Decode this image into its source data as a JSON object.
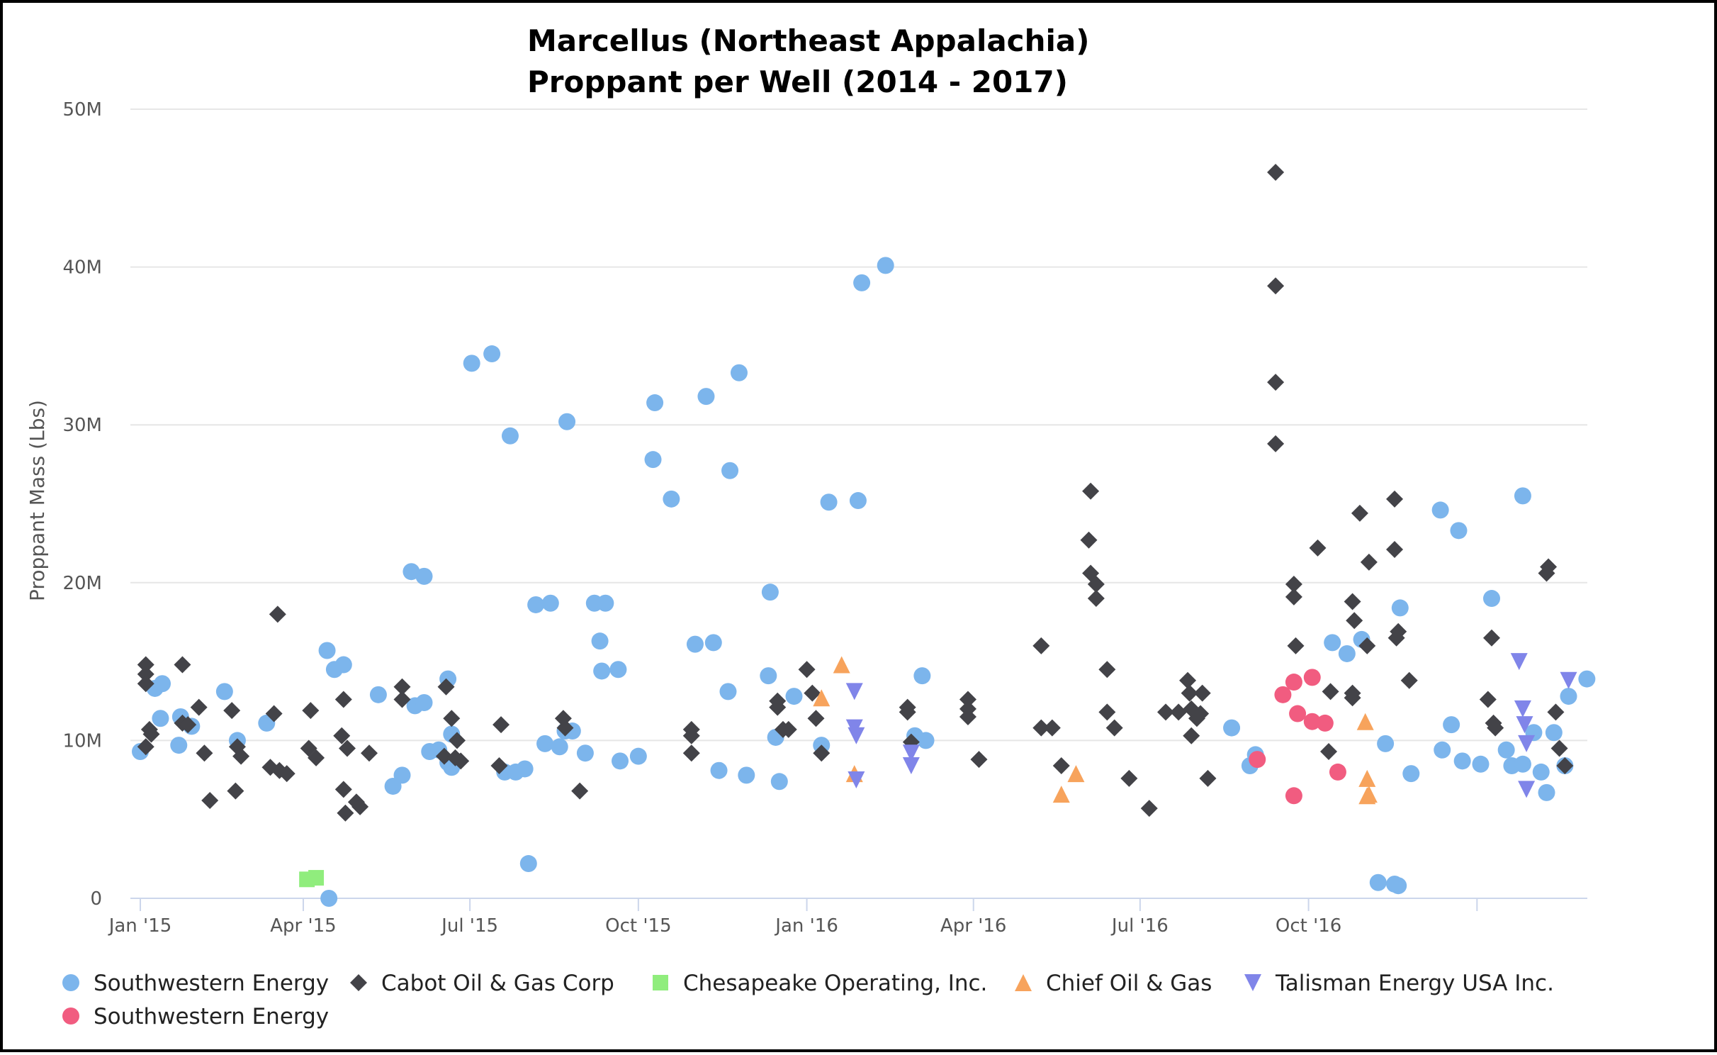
{
  "chart_data": {
    "type": "scatter",
    "title": [
      "Marcellus (Northeast Appalachia)",
      "Proppant per Well (2014 - 2017)"
    ],
    "ylabel": "Proppant Mass (Lbs)",
    "xlabel": "",
    "ylim": [
      0,
      50
    ],
    "y_ticks": [
      {
        "v": 0,
        "label": "0"
      },
      {
        "v": 10,
        "label": "10M"
      },
      {
        "v": 20,
        "label": "20M"
      },
      {
        "v": 30,
        "label": "30M"
      },
      {
        "v": 40,
        "label": "40M"
      },
      {
        "v": 50,
        "label": "50M"
      }
    ],
    "x_range_days": [
      -2,
      763
    ],
    "x_ticks": [
      {
        "label": "Jan '15",
        "d": 0
      },
      {
        "label": "Apr '15",
        "d": 89
      },
      {
        "label": "Jul '15",
        "d": 180
      },
      {
        "label": "Oct '15",
        "d": 272
      },
      {
        "label": "Jan '16",
        "d": 364
      },
      {
        "label": "Apr '16",
        "d": 455
      },
      {
        "label": "Jul '16",
        "d": 546
      },
      {
        "label": "Oct '16",
        "d": 638
      },
      {
        "label": "",
        "d": 730
      }
    ],
    "grid": true,
    "legend_position": "bottom-left",
    "series": [
      {
        "name": "Southwestern Energy",
        "color": "#7cb5ec",
        "marker": "circle",
        "points": [
          [
            0,
            9.3
          ],
          [
            8,
            13.3
          ],
          [
            12,
            13.6
          ],
          [
            22,
            11.5
          ],
          [
            46,
            13.1
          ],
          [
            11,
            11.4
          ],
          [
            21,
            9.7
          ],
          [
            28,
            10.9
          ],
          [
            53,
            10.0
          ],
          [
            69,
            11.1
          ],
          [
            102,
            15.7
          ],
          [
            106,
            14.5
          ],
          [
            111,
            14.8
          ],
          [
            130,
            12.9
          ],
          [
            138,
            7.1
          ],
          [
            143,
            7.8
          ],
          [
            148,
            20.7
          ],
          [
            155,
            20.4
          ],
          [
            150,
            12.2
          ],
          [
            155,
            12.4
          ],
          [
            158,
            9.3
          ],
          [
            163,
            9.4
          ],
          [
            168,
            8.6
          ],
          [
            168,
            13.9
          ],
          [
            170,
            10.4
          ],
          [
            170,
            8.3
          ],
          [
            181,
            33.9
          ],
          [
            192,
            34.5
          ],
          [
            199,
            8.0
          ],
          [
            202,
            29.3
          ],
          [
            205,
            8.0
          ],
          [
            210,
            8.2
          ],
          [
            212,
            2.2
          ],
          [
            216,
            18.6
          ],
          [
            221,
            9.8
          ],
          [
            224,
            18.7
          ],
          [
            229,
            9.6
          ],
          [
            233,
            30.2
          ],
          [
            232,
            10.6
          ],
          [
            236,
            10.6
          ],
          [
            243,
            9.2
          ],
          [
            248,
            18.7
          ],
          [
            254,
            18.7
          ],
          [
            251,
            16.3
          ],
          [
            252,
            14.4
          ],
          [
            261,
            14.5
          ],
          [
            262,
            8.7
          ],
          [
            272,
            9.0
          ],
          [
            280,
            27.8
          ],
          [
            281,
            31.4
          ],
          [
            290,
            25.3
          ],
          [
            303,
            16.1
          ],
          [
            313,
            16.2
          ],
          [
            309,
            31.8
          ],
          [
            316,
            8.1
          ],
          [
            321,
            13.1
          ],
          [
            322,
            27.1
          ],
          [
            331,
            7.8
          ],
          [
            327,
            33.3
          ],
          [
            343,
            14.1
          ],
          [
            344,
            19.4
          ],
          [
            347,
            10.2
          ],
          [
            349,
            7.4
          ],
          [
            357,
            12.8
          ],
          [
            372,
            9.7
          ],
          [
            376,
            25.1
          ],
          [
            392,
            25.2
          ],
          [
            394,
            39.0
          ],
          [
            407,
            40.1
          ],
          [
            423,
            10.3
          ],
          [
            427,
            14.1
          ],
          [
            429,
            10.0
          ],
          [
            103,
            0.0
          ],
          [
            596,
            10.8
          ],
          [
            606,
            8.4
          ],
          [
            609,
            9.1
          ],
          [
            651,
            16.2
          ],
          [
            659,
            15.5
          ],
          [
            667,
            16.4
          ],
          [
            680,
            9.8
          ],
          [
            676,
            1.0
          ],
          [
            685,
            0.9
          ],
          [
            687,
            0.8
          ],
          [
            688,
            18.4
          ],
          [
            694,
            7.9
          ],
          [
            710,
            24.6
          ],
          [
            716,
            11.0
          ],
          [
            711,
            9.4
          ],
          [
            720,
            23.3
          ],
          [
            732,
            8.5
          ],
          [
            722,
            8.7
          ],
          [
            738,
            19.0
          ],
          [
            746,
            9.4
          ],
          [
            755,
            25.5
          ],
          [
            749,
            8.4
          ],
          [
            755,
            8.5
          ],
          [
            761,
            10.5
          ],
          [
            765,
            8.0
          ],
          [
            768,
            6.7
          ],
          [
            772,
            10.5
          ],
          [
            778,
            8.4
          ],
          [
            780,
            12.8
          ],
          [
            790,
            13.9
          ]
        ]
      },
      {
        "name": "Cabot Oil & Gas Corp",
        "color": "#434348",
        "marker": "diamond",
        "points": [
          [
            3,
            14.8
          ],
          [
            3,
            14.2
          ],
          [
            3,
            13.6
          ],
          [
            3,
            9.6
          ],
          [
            5,
            10.7
          ],
          [
            6,
            10.4
          ],
          [
            23,
            14.8
          ],
          [
            23,
            11.1
          ],
          [
            26,
            11.0
          ],
          [
            32,
            12.1
          ],
          [
            35,
            9.2
          ],
          [
            38,
            6.2
          ],
          [
            50,
            11.9
          ],
          [
            53,
            9.6
          ],
          [
            55,
            9.0
          ],
          [
            52,
            6.8
          ],
          [
            75,
            18.0
          ],
          [
            73,
            11.7
          ],
          [
            71,
            8.3
          ],
          [
            76,
            8.1
          ],
          [
            80,
            7.9
          ],
          [
            92,
            9.5
          ],
          [
            93,
            11.9
          ],
          [
            96,
            8.9
          ],
          [
            111,
            12.6
          ],
          [
            110,
            10.3
          ],
          [
            113,
            9.5
          ],
          [
            111,
            6.9
          ],
          [
            112,
            5.4
          ],
          [
            118,
            6.1
          ],
          [
            120,
            5.8
          ],
          [
            125,
            9.2
          ],
          [
            143,
            13.4
          ],
          [
            143,
            12.6
          ],
          [
            167,
            13.4
          ],
          [
            166,
            9.0
          ],
          [
            170,
            11.4
          ],
          [
            172,
            8.9
          ],
          [
            175,
            8.7
          ],
          [
            173,
            10.0
          ],
          [
            197,
            11.0
          ],
          [
            196,
            8.4
          ],
          [
            231,
            11.4
          ],
          [
            232,
            10.8
          ],
          [
            240,
            6.8
          ],
          [
            301,
            10.7
          ],
          [
            301,
            10.3
          ],
          [
            301,
            9.2
          ],
          [
            348,
            12.5
          ],
          [
            348,
            12.1
          ],
          [
            351,
            10.7
          ],
          [
            354,
            10.7
          ],
          [
            364,
            14.5
          ],
          [
            367,
            13.0
          ],
          [
            369,
            11.4
          ],
          [
            372,
            9.2
          ],
          [
            419,
            12.1
          ],
          [
            419,
            11.8
          ],
          [
            421,
            9.9
          ],
          [
            452,
            12.6
          ],
          [
            452,
            12.0
          ],
          [
            452,
            11.5
          ],
          [
            458,
            8.8
          ],
          [
            492,
            16.0
          ],
          [
            492,
            10.8
          ],
          [
            498,
            10.8
          ],
          [
            503,
            8.4
          ],
          [
            519,
            25.8
          ],
          [
            518,
            22.7
          ],
          [
            519,
            20.6
          ],
          [
            522,
            19.9
          ],
          [
            522,
            19.0
          ],
          [
            528,
            14.5
          ],
          [
            528,
            11.8
          ],
          [
            532,
            10.8
          ],
          [
            540,
            7.6
          ],
          [
            551,
            5.7
          ],
          [
            560,
            11.8
          ],
          [
            567,
            11.8
          ],
          [
            572,
            13.8
          ],
          [
            573,
            13.0
          ],
          [
            574,
            12.0
          ],
          [
            574,
            10.3
          ],
          [
            577,
            11.4
          ],
          [
            579,
            11.7
          ],
          [
            580,
            13.0
          ],
          [
            583,
            7.6
          ],
          [
            620,
            46.0
          ],
          [
            620,
            38.8
          ],
          [
            620,
            32.7
          ],
          [
            620,
            28.8
          ],
          [
            631,
            16.0
          ],
          [
            630,
            19.9
          ],
          [
            630,
            19.1
          ],
          [
            643,
            22.2
          ],
          [
            650,
            13.1
          ],
          [
            649,
            9.3
          ],
          [
            662,
            18.8
          ],
          [
            663,
            17.6
          ],
          [
            662,
            13.0
          ],
          [
            662,
            12.7
          ],
          [
            666,
            24.4
          ],
          [
            670,
            16.0
          ],
          [
            671,
            21.3
          ],
          [
            685,
            25.3
          ],
          [
            685,
            22.1
          ],
          [
            687,
            16.9
          ],
          [
            686,
            16.5
          ],
          [
            693,
            13.8
          ],
          [
            738,
            16.5
          ],
          [
            736,
            12.6
          ],
          [
            739,
            11.1
          ],
          [
            740,
            10.8
          ],
          [
            769,
            21.0
          ],
          [
            768,
            20.6
          ],
          [
            773,
            11.8
          ],
          [
            775,
            9.5
          ],
          [
            778,
            8.4
          ]
        ]
      },
      {
        "name": "Chesapeake Operating, Inc.",
        "color": "#90ed7d",
        "marker": "square",
        "points": [
          [
            91,
            1.2
          ],
          [
            96,
            1.3
          ]
        ]
      },
      {
        "name": "Chief Oil & Gas",
        "color": "#f7a35c",
        "marker": "triangle",
        "points": [
          [
            372,
            12.7
          ],
          [
            383,
            14.8
          ],
          [
            390,
            7.9
          ],
          [
            503,
            6.6
          ],
          [
            511,
            7.9
          ],
          [
            669,
            11.2
          ],
          [
            670,
            6.5
          ],
          [
            670,
            7.6
          ],
          [
            671,
            6.6
          ]
        ]
      },
      {
        "name": "Talisman Energy USA Inc.",
        "color": "#8085e9",
        "marker": "triangle-down",
        "points": [
          [
            390,
            13.1
          ],
          [
            390,
            10.8
          ],
          [
            391,
            10.3
          ],
          [
            391,
            7.5
          ],
          [
            421,
            9.2
          ],
          [
            421,
            8.4
          ],
          [
            753,
            15.0
          ],
          [
            755,
            12.0
          ],
          [
            756,
            11.0
          ],
          [
            757,
            9.8
          ],
          [
            757,
            6.9
          ],
          [
            780,
            13.8
          ]
        ]
      },
      {
        "name": "Southwestern Energy",
        "color": "#f15c80",
        "marker": "circle",
        "points": [
          [
            624,
            12.9
          ],
          [
            630,
            13.7
          ],
          [
            632,
            11.7
          ],
          [
            640,
            11.2
          ],
          [
            647,
            11.1
          ],
          [
            640,
            14.0
          ],
          [
            610,
            8.8
          ],
          [
            630,
            6.5
          ],
          [
            654,
            8.0
          ]
        ]
      }
    ]
  }
}
